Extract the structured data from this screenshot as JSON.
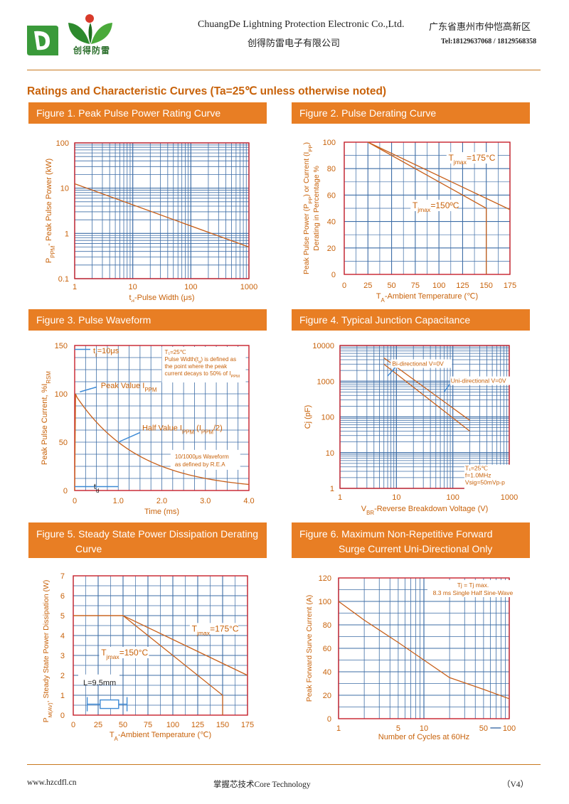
{
  "header": {
    "brand_cn": "创得防雷",
    "company_en": "ChuangDe Lightning Protection Electronic Co.,Ltd.",
    "company_cn": "创得防雷电子有限公司",
    "address_cn": "广东省惠州市仲恺高新区",
    "tel": "Tel:18129637068 / 18129568358"
  },
  "section_title": "Ratings and Characteristic Curves (Ta=25℃ unless otherwise noted)",
  "figures": {
    "f1": {
      "title": "Figure 1. Peak Pulse Power Rating Curve"
    },
    "f2": {
      "title": "Figure 2. Pulse Derating Curve"
    },
    "f3": {
      "title": "Figure 3. Pulse Waveform"
    },
    "f4": {
      "title": "Figure 4. Typical Junction Capacitance"
    },
    "f5": {
      "title_1": "Figure 5. Steady State Power Dissipation Derating",
      "title_2": "Curve"
    },
    "f6": {
      "title_1": "Figure 6. Maximum Non-Repetitive Forward",
      "title_2": "Surge Current Uni-Directional Only"
    }
  },
  "chart_data": [
    {
      "type": "line",
      "xscale": "log",
      "yscale": "log",
      "xlabel_html": "t<sub>d</sub>-Pulse Width (μs)",
      "ylabel_html": "P<sub>PPM</sub>- Peak Pulse Power (kW)",
      "x_ticks": [
        "1",
        "10",
        "100",
        "1000"
      ],
      "y_ticks": [
        "0.1",
        "1",
        "10",
        "100"
      ],
      "xlim": [
        1,
        1000
      ],
      "ylim": [
        0.1,
        100
      ],
      "series": [
        {
          "x": [
            1,
            1000
          ],
          "y": [
            12.5,
            0.5
          ]
        }
      ]
    },
    {
      "type": "line",
      "xlabel_parts": [
        "T",
        "A",
        "-Ambient Temperature (℃)"
      ],
      "ylabel_parts": [
        "Peak Pulse Power (P",
        "PP",
        ") or Current (I",
        "PP",
        ")"
      ],
      "ylabel_line2": "Derating in Percentage %",
      "x_ticks": [
        0,
        25,
        50,
        75,
        100,
        125,
        150,
        175
      ],
      "y_ticks": [
        0,
        20,
        40,
        60,
        80,
        100
      ],
      "xlim": [
        0,
        175
      ],
      "ylim": [
        0,
        100
      ],
      "annotations": [
        {
          "parts": [
            "T",
            "jmax",
            "=175°C"
          ]
        },
        {
          "parts": [
            "T",
            "jmax",
            "=150ºC"
          ]
        }
      ],
      "series": [
        {
          "x": [
            25,
            175
          ],
          "y": [
            100,
            49
          ]
        },
        {
          "x": [
            25,
            150,
            150
          ],
          "y": [
            100,
            50,
            0
          ]
        }
      ]
    },
    {
      "type": "line",
      "xlabel": "Time (ms)",
      "ylabel_parts": [
        "Peak Pulse Current, %I",
        "RSM"
      ],
      "x_ticks": [
        "0",
        "1.0",
        "2.0",
        "3.0",
        "4.0"
      ],
      "y_ticks": [
        "0",
        "50",
        "100",
        "150"
      ],
      "xlim": [
        0,
        4
      ],
      "ylim": [
        0,
        150
      ],
      "annotations": {
        "tr": [
          "t",
          "r",
          "=10μs"
        ],
        "peak": [
          "Peak Value I",
          "PPM"
        ],
        "half": [
          "Half Value I",
          "PPM",
          " (I",
          "PPM",
          "/2)"
        ],
        "td": [
          "t",
          "d"
        ],
        "note_lines": [
          "T₁=25℃",
          "Pulse Width(t",
          "d",
          ") is defined as",
          "the point where the peak",
          "current decays to 50% of I",
          "PPM"
        ],
        "wave_1": "10/1000μs Waveform",
        "wave_2": "as defined by R.E.A"
      },
      "series": [
        {
          "x": [
            0,
            0.01,
            0.5,
            1,
            1.5,
            2,
            2.5,
            3,
            3.5,
            4
          ],
          "y": [
            0,
            100,
            70.7,
            50,
            35.4,
            25,
            17.7,
            12.5,
            8.8,
            6.3
          ]
        }
      ]
    },
    {
      "type": "line",
      "xscale": "log",
      "yscale": "log",
      "xlabel_parts": [
        "V",
        "BR",
        "-Reverse Breakdown Voltage (V)"
      ],
      "ylabel": "Cj (pF)",
      "x_ticks": [
        "1",
        "10",
        "100",
        "1000"
      ],
      "y_ticks": [
        "1",
        "10",
        "100",
        "1000",
        "10000"
      ],
      "xlim": [
        1,
        1000
      ],
      "ylim": [
        1,
        10000
      ],
      "series": [
        {
          "name": "Bi-directional V=0V",
          "x": [
            6,
            200
          ],
          "y": [
            4500,
            80
          ]
        },
        {
          "name": "Uni-directional V=0V",
          "x": [
            6,
            200
          ],
          "y": [
            3000,
            40
          ]
        }
      ],
      "note": [
        "T₁=25℃",
        "f=1.0MHz",
        "Vsig=50mVp-p"
      ]
    },
    {
      "type": "line",
      "xlabel_parts": [
        "T",
        "A",
        "-Ambient Temperature (℃)"
      ],
      "ylabel_parts": [
        "P",
        "M(AV)",
        ", Steady State Power Dissipation (W)"
      ],
      "x_ticks": [
        0,
        25,
        50,
        75,
        100,
        125,
        150,
        175
      ],
      "y_ticks": [
        0,
        1,
        2,
        3,
        4,
        5,
        6,
        7
      ],
      "xlim": [
        0,
        175
      ],
      "ylim": [
        0,
        7
      ],
      "annotations": [
        {
          "parts": [
            "T",
            "jmax",
            "=175°C"
          ]
        },
        {
          "parts": [
            "T",
            "jmax",
            "=150°C"
          ]
        },
        {
          "text": "L=9.5mm"
        }
      ],
      "series": [
        {
          "x": [
            0,
            50,
            175
          ],
          "y": [
            5,
            5,
            2
          ]
        },
        {
          "x": [
            0,
            50,
            150,
            150
          ],
          "y": [
            5,
            5,
            1,
            0
          ]
        }
      ]
    },
    {
      "type": "line",
      "xscale": "log",
      "xlabel": "Number of Cycles at 60Hz",
      "ylabel": "Peak Forward Surve Current (A)",
      "x_ticks": [
        "1",
        "5",
        "10",
        "50",
        "100"
      ],
      "y_ticks": [
        "0",
        "20",
        "40",
        "60",
        "80",
        "100",
        "120"
      ],
      "xlim": [
        1,
        100
      ],
      "ylim": [
        0,
        120
      ],
      "note": [
        "Tj = Tj  max.",
        "8.3 ms Single Half Sine-Wave"
      ],
      "series": [
        {
          "x": [
            1,
            2,
            5,
            10,
            20,
            50,
            100
          ],
          "y": [
            100,
            84,
            65,
            50,
            35,
            25,
            17
          ]
        }
      ]
    }
  ],
  "footer": {
    "website": "www.hzcdfl.cn",
    "slogan": "掌握芯技术Core Technology",
    "version": "（V4）"
  },
  "colors": {
    "accent": "#e87e24",
    "grid": "#3d6da6",
    "curve": "#c8601a",
    "label": "#c8620a"
  }
}
